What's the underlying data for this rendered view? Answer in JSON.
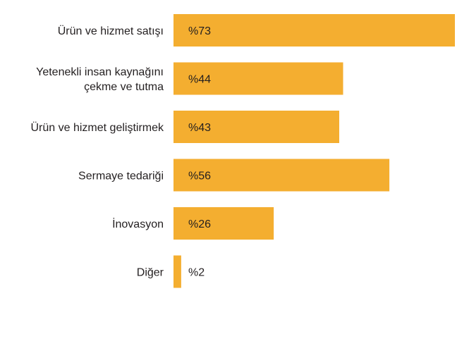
{
  "chart_data": {
    "type": "bar",
    "orientation": "horizontal",
    "categories": [
      [
        "Ürün ve hizmet satışı"
      ],
      [
        "Yetenekli insan kaynağını",
        "çekme ve tutma"
      ],
      [
        "Ürün ve hizmet geliştirmek"
      ],
      [
        "Sermaye tedariği"
      ],
      [
        "İnovasyon"
      ],
      [
        "Diğer"
      ]
    ],
    "values": [
      73,
      44,
      43,
      56,
      26,
      2
    ],
    "value_labels": [
      "%73",
      "%44",
      "%43",
      "%56",
      "%26",
      "%2"
    ],
    "xlim": [
      0,
      73
    ],
    "grid": false,
    "legend": "none",
    "bar_color": "#f4ae30",
    "text_color": "#231f20"
  }
}
